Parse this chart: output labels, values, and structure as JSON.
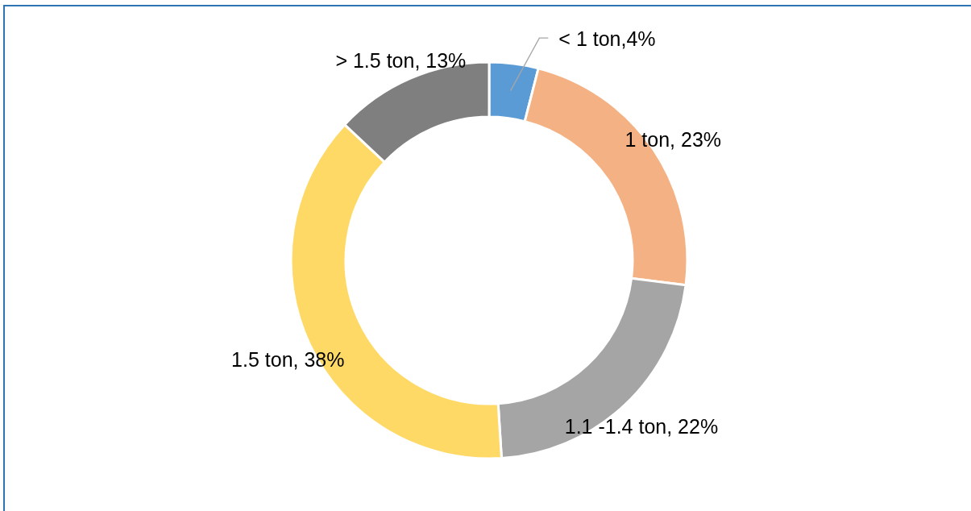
{
  "chart_data": {
    "type": "donut",
    "categories": [
      "< 1 ton",
      "1 ton",
      "1.1 -1.4 ton",
      "1.5 ton",
      "> 1.5 ton"
    ],
    "values": [
      4,
      23,
      22,
      38,
      13
    ],
    "colors": [
      "#5b9bd5",
      "#f4b183",
      "#a5a5a5",
      "#ffd966",
      "#7f7f7f"
    ],
    "value_labels": [
      ",4%",
      ", 23%",
      ", 22%",
      ", 38%",
      ", 13%"
    ]
  }
}
